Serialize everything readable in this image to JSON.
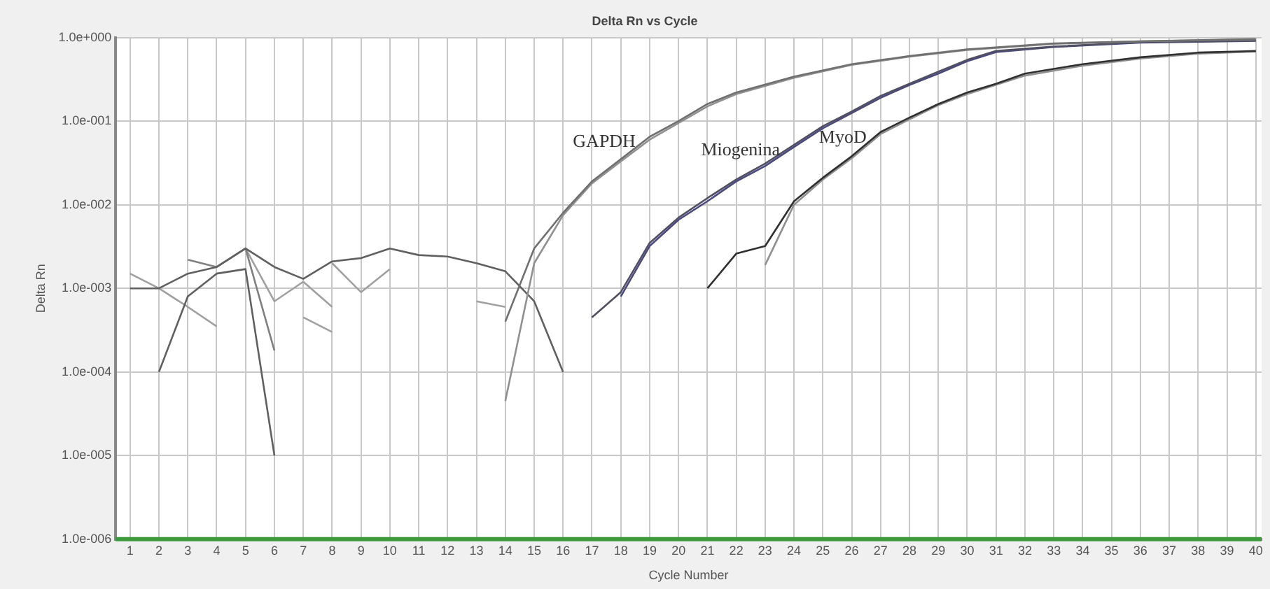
{
  "chart_data": {
    "type": "line",
    "title": "Delta Rn vs Cycle",
    "xlabel": "Cycle Number",
    "ylabel": "Delta Rn",
    "log": "y",
    "grid": true,
    "legend": false,
    "marker": "none",
    "line_style": "solid",
    "xlim": [
      0.5,
      40.2
    ],
    "xticks": [
      1,
      2,
      3,
      4,
      5,
      6,
      7,
      8,
      9,
      10,
      11,
      12,
      13,
      14,
      15,
      16,
      17,
      18,
      19,
      20,
      21,
      22,
      23,
      24,
      25,
      26,
      27,
      28,
      29,
      30,
      31,
      32,
      33,
      34,
      35,
      36,
      37,
      38,
      39,
      40
    ],
    "ylim": [
      1e-06,
      1
    ],
    "yticks": [
      {
        "value": 1e-06,
        "label": "1.0e-006"
      },
      {
        "value": 1e-05,
        "label": "1.0e-005"
      },
      {
        "value": 0.0001,
        "label": "1.0e-004"
      },
      {
        "value": 0.001,
        "label": "1.0e-003"
      },
      {
        "value": 0.01,
        "label": "1.0e-002"
      },
      {
        "value": 0.1,
        "label": "1.0e-001"
      },
      {
        "value": 1,
        "label": "1.0e+000"
      }
    ],
    "ref_lines": [
      {
        "axis": "y",
        "value": 1e-06,
        "color": "#3c9a3c"
      }
    ],
    "series": [
      {
        "name": "GAPDH",
        "color": "#707070",
        "x": [
          14,
          15,
          16,
          17,
          18,
          19,
          20,
          21,
          22,
          24,
          26,
          28,
          30,
          33,
          36,
          40
        ],
        "values": [
          0.0004,
          0.003,
          0.008,
          0.019,
          0.035,
          0.065,
          0.1,
          0.16,
          0.22,
          0.34,
          0.48,
          0.6,
          0.72,
          0.85,
          0.9,
          0.96
        ]
      },
      {
        "color": "#909090",
        "x": [
          14,
          15,
          16,
          17,
          18,
          19,
          20,
          21,
          22,
          24,
          26,
          28,
          30,
          33,
          36,
          40
        ],
        "values": [
          4.5e-05,
          0.002,
          0.0075,
          0.018,
          0.033,
          0.06,
          0.095,
          0.15,
          0.21,
          0.33,
          0.47,
          0.59,
          0.71,
          0.84,
          0.9,
          0.95
        ]
      },
      {
        "name": "Miogenina",
        "color": "#505060",
        "x": [
          17,
          18,
          19,
          20,
          21,
          22,
          23,
          24,
          25,
          26,
          27,
          28,
          29,
          30,
          31,
          33,
          36,
          40
        ],
        "values": [
          0.00045,
          0.0009,
          0.0035,
          0.007,
          0.012,
          0.02,
          0.031,
          0.052,
          0.087,
          0.13,
          0.2,
          0.28,
          0.39,
          0.54,
          0.69,
          0.78,
          0.88,
          0.92
        ]
      },
      {
        "color": "#4a4a80",
        "x": [
          18,
          19,
          20,
          21,
          22,
          23,
          24,
          25,
          26,
          27,
          28,
          29,
          30,
          31,
          33,
          36,
          40
        ],
        "values": [
          0.0008,
          0.0032,
          0.0066,
          0.011,
          0.019,
          0.029,
          0.049,
          0.082,
          0.125,
          0.19,
          0.27,
          0.37,
          0.52,
          0.67,
          0.77,
          0.87,
          0.91
        ]
      },
      {
        "name": "MyoD",
        "color": "#303030",
        "x": [
          21,
          22,
          23,
          24,
          25,
          26,
          27,
          28,
          29,
          30,
          31,
          32,
          34,
          36,
          38,
          40
        ],
        "values": [
          0.001,
          0.0026,
          0.0032,
          0.011,
          0.021,
          0.038,
          0.074,
          0.11,
          0.16,
          0.22,
          0.28,
          0.37,
          0.48,
          0.58,
          0.66,
          0.69
        ]
      },
      {
        "color": "#909090",
        "x": [
          23,
          24,
          25,
          26,
          27,
          28,
          29,
          30,
          32,
          34,
          36,
          38,
          40
        ],
        "values": [
          0.0019,
          0.01,
          0.02,
          0.036,
          0.07,
          0.105,
          0.155,
          0.21,
          0.35,
          0.46,
          0.56,
          0.64,
          0.68
        ]
      },
      {
        "color": "#606060",
        "x": [
          1,
          2,
          3,
          4,
          5,
          6,
          7,
          8,
          9,
          10,
          11,
          12,
          13,
          14,
          15,
          16
        ],
        "values": [
          0.001,
          0.001,
          0.0015,
          0.0018,
          0.003,
          0.0018,
          0.0013,
          0.0021,
          0.0023,
          0.003,
          0.0025,
          0.0024,
          0.002,
          0.0016,
          0.0007,
          0.0001
        ]
      },
      {
        "color": "#606060",
        "x": [
          2,
          3,
          4,
          5,
          6
        ],
        "values": [
          0.0001,
          0.0008,
          0.0015,
          0.0017,
          1e-05
        ]
      },
      {
        "color": "#a0a0a0",
        "x": [
          1,
          2,
          3,
          4
        ],
        "values": [
          0.0015,
          0.001,
          0.0006,
          0.00035
        ]
      },
      {
        "color": "#808080",
        "x": [
          3,
          4,
          5,
          6
        ],
        "values": [
          0.0022,
          0.0018,
          0.003,
          0.00018
        ]
      },
      {
        "color": "#a0a0a0",
        "x": [
          5,
          6,
          7,
          8
        ],
        "values": [
          0.003,
          0.0007,
          0.0012,
          0.0006
        ]
      },
      {
        "color": "#a0a0a0",
        "x": [
          7,
          8
        ],
        "values": [
          0.00045,
          0.0003
        ]
      },
      {
        "color": "#a0a0a0",
        "x": [
          8,
          9,
          10
        ],
        "values": [
          0.002,
          0.0009,
          0.0017
        ]
      },
      {
        "color": "#a0a0a0",
        "x": [
          13,
          14
        ],
        "values": [
          0.0007,
          0.0006
        ]
      }
    ]
  }
}
